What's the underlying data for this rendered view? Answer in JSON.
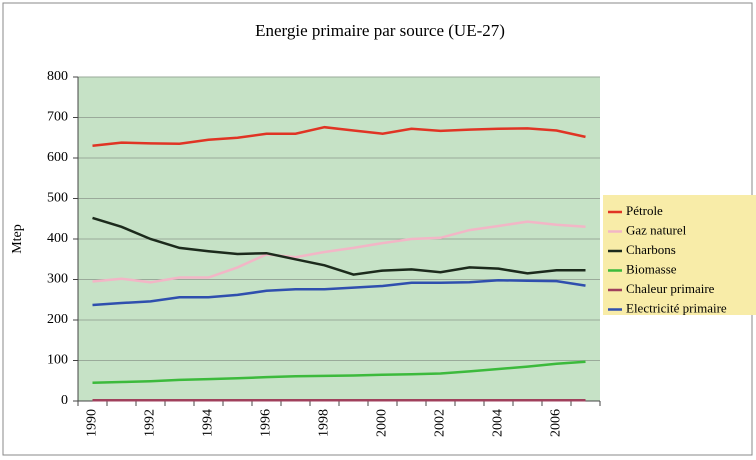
{
  "chart_data": {
    "type": "line",
    "title": "Energie primaire par source (UE-27)",
    "y_label": "Mtep",
    "categories": [
      "1990",
      null,
      "1992",
      null,
      "1994",
      null,
      "1996",
      null,
      "1998",
      null,
      "2000",
      null,
      "2002",
      null,
      "2004",
      null,
      "2006",
      null
    ],
    "ylim": [
      0,
      800
    ],
    "yticks": [
      0,
      100,
      200,
      300,
      400,
      500,
      600,
      700,
      800
    ],
    "grid": true,
    "legend": "right",
    "series": [
      {
        "name": "Pétrole",
        "color": "#e03424",
        "values": [
          630,
          638,
          636,
          635,
          645,
          650,
          660,
          660,
          676,
          668,
          660,
          672,
          667,
          670,
          672,
          673,
          668,
          652
        ]
      },
      {
        "name": "Gaz naturel",
        "color": "#f2b6c6",
        "values": [
          295,
          302,
          293,
          305,
          305,
          330,
          362,
          355,
          368,
          378,
          390,
          400,
          403,
          422,
          432,
          443,
          435,
          430
        ]
      },
      {
        "name": "Charbons",
        "color": "#1c2a1c",
        "values": [
          452,
          430,
          400,
          378,
          370,
          363,
          365,
          350,
          335,
          312,
          322,
          325,
          318,
          330,
          327,
          315,
          323,
          323
        ]
      },
      {
        "name": "Biomasse",
        "color": "#3cba3c",
        "values": [
          45,
          47,
          49,
          52,
          54,
          56,
          59,
          61,
          62,
          63,
          65,
          66,
          68,
          73,
          79,
          85,
          92,
          97
        ]
      },
      {
        "name": "Chaleur primaire",
        "color": "#a0405c",
        "values": [
          2,
          2,
          2,
          2,
          2,
          2,
          2,
          2,
          2,
          2,
          2,
          2,
          2,
          2,
          2,
          2,
          2,
          2
        ]
      },
      {
        "name": "Electricité primaire",
        "color": "#2f4fae",
        "values": [
          237,
          242,
          246,
          256,
          256,
          262,
          272,
          276,
          276,
          280,
          284,
          292,
          292,
          293,
          298,
          297,
          296,
          285
        ]
      }
    ]
  }
}
